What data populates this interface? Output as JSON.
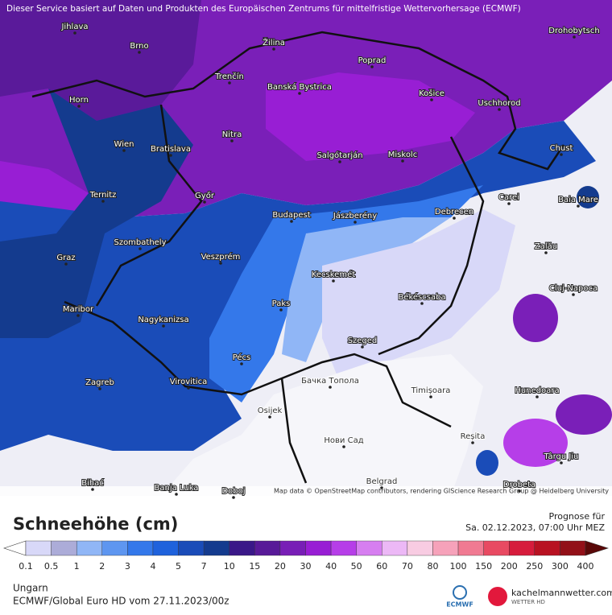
{
  "header": {
    "notice": "Dieser Service basiert auf Daten und Produkten des Europäischen Zentrums für mittelfristige Wettervorhersage (ECMWF)",
    "attribution": "Map data © OpenStreetMap contributors, rendering GIScience Research Group @ Heidelberg University"
  },
  "cities": [
    "Jihlava",
    "Brno",
    "Žilina",
    "Poprad",
    "Drohobytsch",
    "Trenčín",
    "Banská Bystrica",
    "Košice",
    "Uschhorod",
    "Horn",
    "Nitra",
    "Wien",
    "Bratislava",
    "Salgótarján",
    "Miskolc",
    "Chust",
    "Ternitz",
    "Győr",
    "Budapest",
    "Jászberény",
    "Debrecen",
    "Carei",
    "Baia Mare",
    "Szombathely",
    "Zalău",
    "Graz",
    "Veszprém",
    "Kecskemét",
    "Cluj-Napoca",
    "Békéscsaba",
    "Paks",
    "Maribor",
    "Nagykanizsa",
    "Szeged",
    "Pécs",
    "Zagreb",
    "Virovitica",
    "Бачка Топола",
    "Timișoara",
    "Hunedoara",
    "Osijek",
    "Нови Сад",
    "Reșita",
    "Târgu Jiu",
    "Bihać",
    "Banja Luka",
    "Doboj",
    "Belgrad",
    "Drobeta"
  ],
  "legend": {
    "title": "Schneehöhe (cm)",
    "ticks": [
      0.1,
      0.5,
      1,
      2,
      3,
      4,
      5,
      7,
      10,
      15,
      20,
      30,
      40,
      50,
      60,
      70,
      80,
      100,
      150,
      200,
      250,
      300,
      400
    ],
    "colors": [
      "#d8d8f8",
      "#acacd8",
      "#90b6f6",
      "#5e96f0",
      "#3478ea",
      "#1f62dc",
      "#1a4cb8",
      "#143b8e",
      "#3a1888",
      "#581a98",
      "#781eb6",
      "#981ed4",
      "#b63ee8",
      "#d67ef0",
      "#ecb8f6",
      "#f8cce2",
      "#f6a2ba",
      "#f07a92",
      "#e84a62",
      "#d61c3c",
      "#b81222",
      "#921018"
    ],
    "under_color": "#ffffff",
    "over_color": "#5a0808"
  },
  "forecast": {
    "label": "Prognose für",
    "time": "Sa. 02.12.2023, 07:00 Uhr MEZ"
  },
  "footer": {
    "region": "Ungarn",
    "model": "ECMWF/Global Euro HD vom  27.11.2023/00z",
    "ecmwf": "ECMWF",
    "site": "kachelmannwetter.com",
    "site_sub": "WETTER HD"
  }
}
